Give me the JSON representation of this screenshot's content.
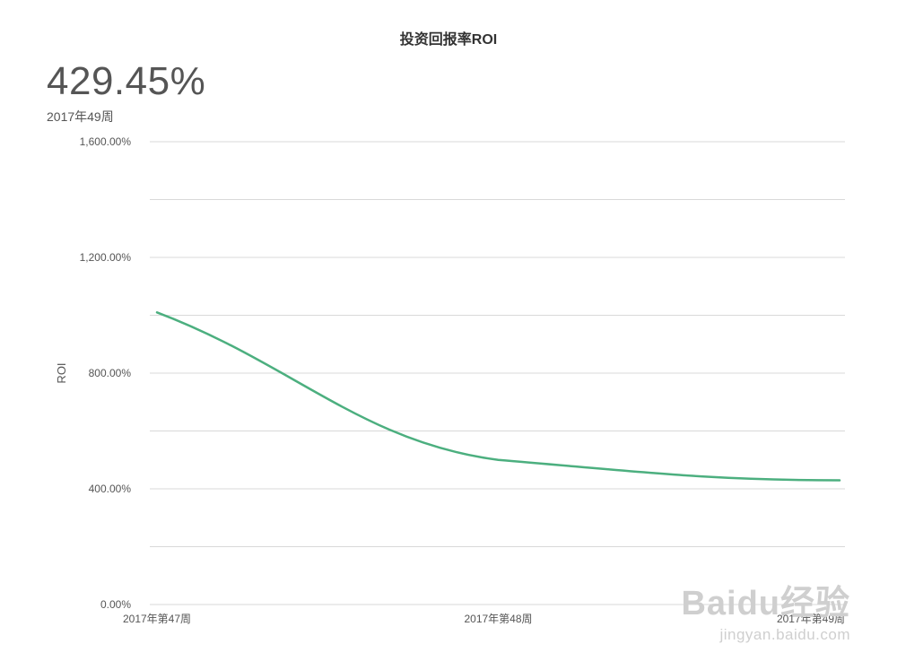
{
  "kpi": {
    "value": "429.45%",
    "label": "2017年49周"
  },
  "chart_data": {
    "type": "line",
    "title": "投资回报率ROI",
    "ylabel": "ROI",
    "xlabel": "",
    "categories": [
      "2017年第47周",
      "2017年第48周",
      "2017年第49周"
    ],
    "series": [
      {
        "values": [
          1010,
          500,
          429.45
        ],
        "color": "#4caf7f"
      }
    ],
    "ylim": [
      0,
      1600
    ],
    "yticks": [
      0,
      400,
      800,
      1200,
      1600
    ],
    "ytick_labels": [
      "0.00%",
      "400.00%",
      "800.00%",
      "1,200.00%",
      "1,600.00%"
    ],
    "grid": true,
    "legend": "none"
  },
  "watermark": {
    "logo": "Baidu经验",
    "url": "jingyan.baidu.com"
  }
}
